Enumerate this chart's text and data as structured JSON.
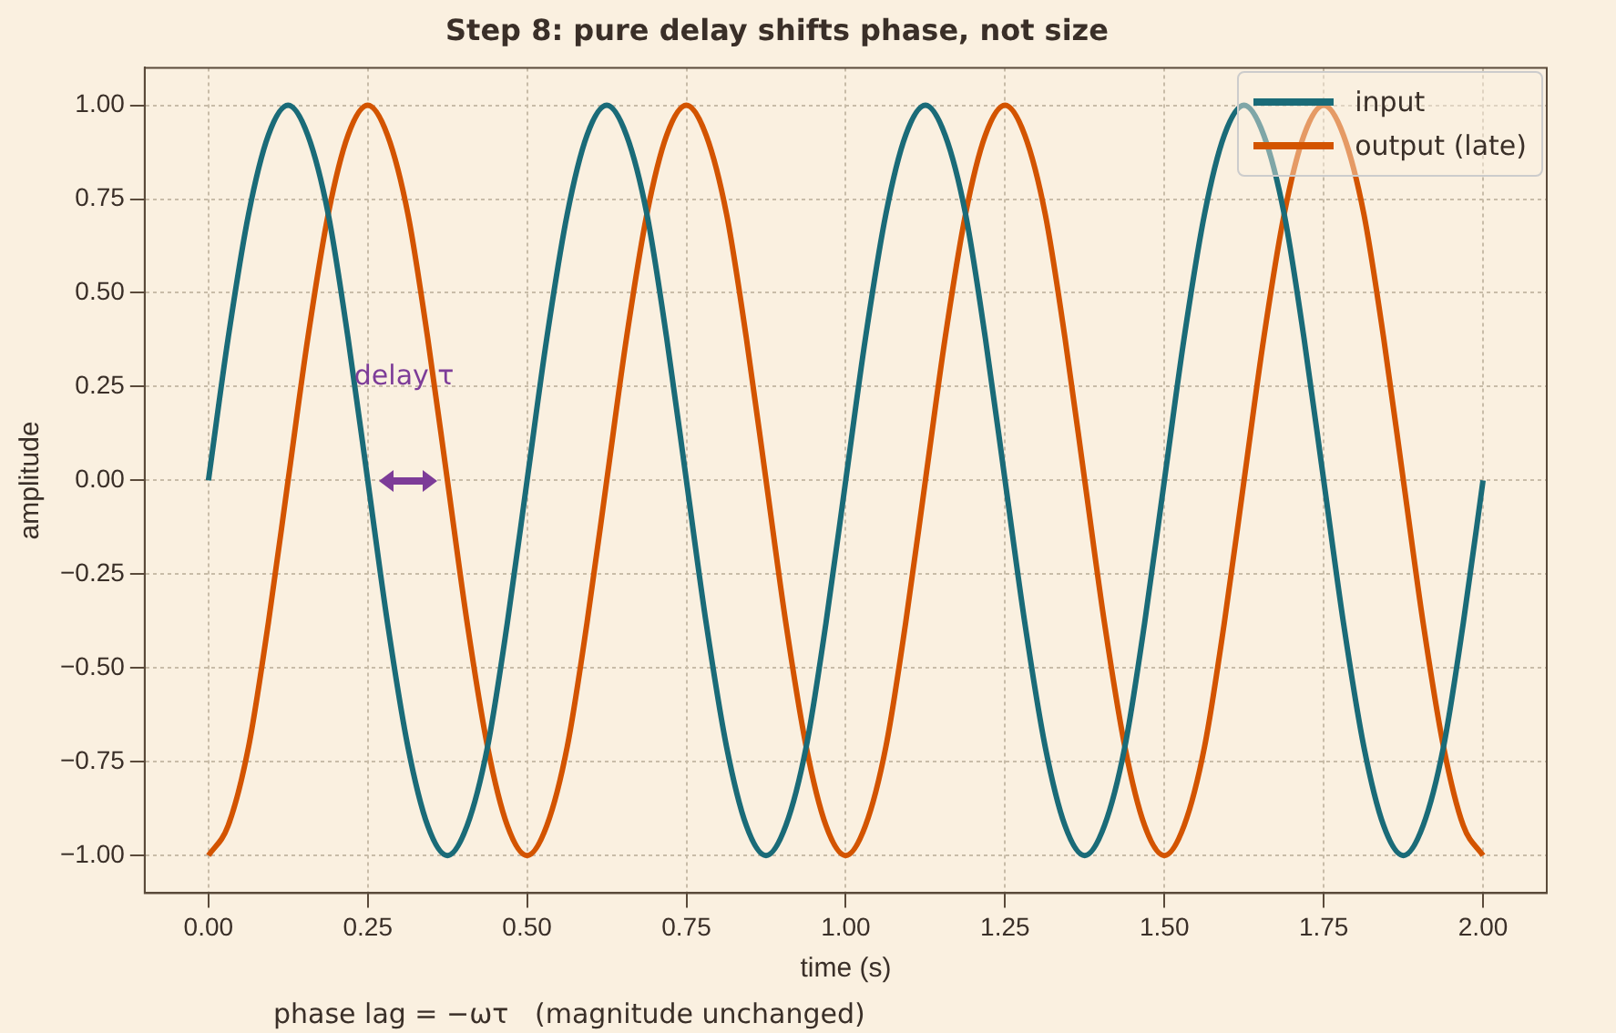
{
  "chart_data": {
    "type": "line",
    "title": "Step 8: pure delay shifts phase, not size",
    "xlabel": "time (s)",
    "ylabel": "amplitude",
    "x": [
      0,
      0.031,
      0.063,
      0.094,
      0.125,
      0.156,
      0.188,
      0.219,
      0.25,
      0.281,
      0.313,
      0.344,
      0.375,
      0.406,
      0.438,
      0.469,
      0.5,
      0.531,
      0.563,
      0.594,
      0.625,
      0.656,
      0.688,
      0.719,
      0.75,
      0.781,
      0.813,
      0.844,
      0.875,
      0.906,
      0.938,
      0.969,
      1,
      1.031,
      1.063,
      1.094,
      1.125,
      1.156,
      1.188,
      1.219,
      1.25,
      1.281,
      1.313,
      1.344,
      1.375,
      1.406,
      1.438,
      1.469,
      1.5,
      1.531,
      1.563,
      1.594,
      1.625,
      1.656,
      1.688,
      1.719,
      1.75,
      1.781,
      1.813,
      1.844,
      1.875,
      1.906,
      1.938,
      1.969,
      2
    ],
    "series": [
      {
        "name": "input",
        "color": "#1a6b78",
        "values": [
          0,
          0.38,
          0.71,
          0.92,
          1,
          0.92,
          0.71,
          0.38,
          0,
          -0.38,
          -0.71,
          -0.92,
          -1,
          -0.92,
          -0.71,
          -0.38,
          0,
          0.38,
          0.71,
          0.92,
          1,
          0.92,
          0.71,
          0.38,
          0,
          -0.38,
          -0.71,
          -0.92,
          -1,
          -0.92,
          -0.71,
          -0.38,
          0,
          0.38,
          0.71,
          0.92,
          1,
          0.92,
          0.71,
          0.38,
          0,
          -0.38,
          -0.71,
          -0.92,
          -1,
          -0.92,
          -0.71,
          -0.38,
          0,
          0.38,
          0.71,
          0.92,
          1,
          0.92,
          0.71,
          0.38,
          0,
          -0.38,
          -0.71,
          -0.92,
          -1,
          -0.92,
          -0.71,
          -0.38,
          0
        ]
      },
      {
        "name": "output (late)",
        "color": "#d35400",
        "values": [
          -1,
          -0.92,
          -0.71,
          -0.38,
          0,
          0.38,
          0.71,
          0.92,
          1,
          0.92,
          0.71,
          0.38,
          0,
          -0.38,
          -0.71,
          -0.92,
          -1,
          -0.92,
          -0.71,
          -0.38,
          0,
          0.38,
          0.71,
          0.92,
          1,
          0.92,
          0.71,
          0.38,
          0,
          -0.38,
          -0.71,
          -0.92,
          -1,
          -0.92,
          -0.71,
          -0.38,
          0,
          0.38,
          0.71,
          0.92,
          1,
          0.92,
          0.71,
          0.38,
          0,
          -0.38,
          -0.71,
          -0.92,
          -1,
          -0.92,
          -0.71,
          -0.38,
          0,
          0.38,
          0.71,
          0.92,
          1,
          0.92,
          0.71,
          0.38,
          0,
          -0.38,
          -0.71,
          -0.92,
          -1
        ]
      }
    ],
    "xlim": [
      -0.1,
      2.1
    ],
    "xticks": [
      {
        "value": 0,
        "label": "0.00"
      },
      {
        "value": 0.25,
        "label": "0.25"
      },
      {
        "value": 0.5,
        "label": "0.50"
      },
      {
        "value": 0.75,
        "label": "0.75"
      },
      {
        "value": 1,
        "label": "1.00"
      },
      {
        "value": 1.25,
        "label": "1.25"
      },
      {
        "value": 1.5,
        "label": "1.50"
      },
      {
        "value": 1.75,
        "label": "1.75"
      },
      {
        "value": 2,
        "label": "2.00"
      }
    ],
    "ylim": [
      -1.1,
      1.1
    ],
    "yticks": [
      {
        "value": -1,
        "label": "−1.00"
      },
      {
        "value": -0.75,
        "label": "−0.75"
      },
      {
        "value": -0.5,
        "label": "−0.50"
      },
      {
        "value": -0.25,
        "label": "−0.25"
      },
      {
        "value": 0,
        "label": "0.00"
      },
      {
        "value": 0.25,
        "label": "0.25"
      },
      {
        "value": 0.5,
        "label": "0.50"
      },
      {
        "value": 0.75,
        "label": "0.75"
      },
      {
        "value": 1,
        "label": "1.00"
      }
    ],
    "grid": true,
    "legend": "top right",
    "marker": "none",
    "line_style": "solid",
    "annotations": [
      "delay τ",
      "phase lag = −ωτ   (magnitude unchanged)"
    ]
  }
}
